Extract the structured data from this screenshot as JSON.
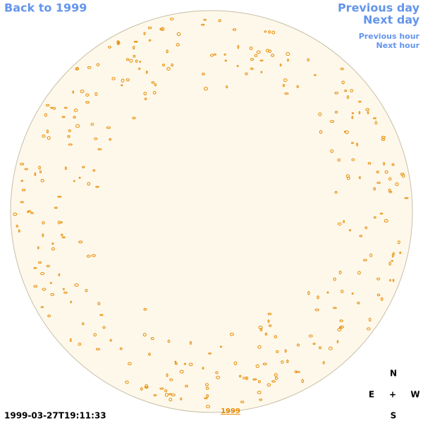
{
  "nav": {
    "back": "Back to 1999",
    "previous_day": "Previous day",
    "next_day": "Next day",
    "previous_hour": "Previous hour",
    "next_hour": "Next hour"
  },
  "timestamp": "1999-03-27T19:11:33",
  "year_link": "1999",
  "compass": {
    "north": "N",
    "east": "E",
    "center": "+",
    "west": "W",
    "south": "S"
  }
}
